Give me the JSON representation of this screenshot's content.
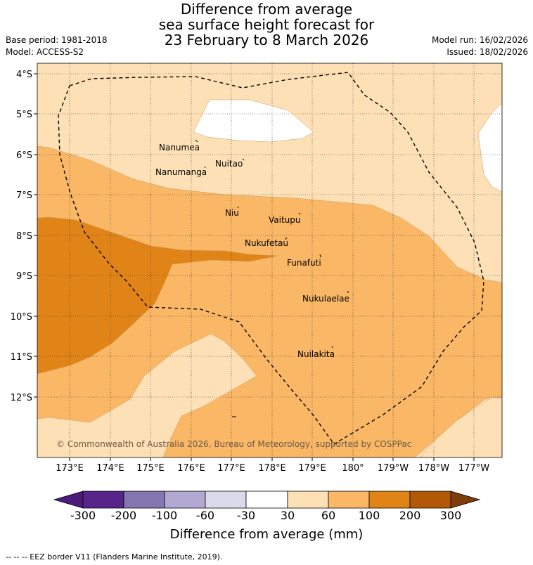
{
  "title": {
    "line1": "Difference from average",
    "line2": "sea surface height forecast for",
    "line3": "23 February to 8 March 2026"
  },
  "meta": {
    "base_period": "Base period: 1981-2018",
    "model": "Model: ACCESS-S2",
    "model_run": "Model run: 16/02/2026",
    "issued": "Issued: 18/02/2026"
  },
  "map": {
    "lat_labels": [
      "4°S",
      "5°S",
      "6°S",
      "7°S",
      "8°S",
      "9°S",
      "10°S",
      "11°S",
      "12°S"
    ],
    "lon_labels": [
      "173°E",
      "174°E",
      "175°E",
      "176°E",
      "177°E",
      "178°E",
      "179°E",
      "180°",
      "179°W",
      "178°W",
      "177°W"
    ],
    "islands": [
      "Nanumea",
      "Nuitao",
      "Nanumanga",
      "Niu",
      "Vaitupu",
      "Nukufetau",
      "Funafuti",
      "Nukulaelae",
      "Nuilakita"
    ],
    "copyright": "© Commonwealth of Australia 2026, Bureau of Meteorology, supported by COSPPac",
    "colors": {
      "c30_60": "#fde0b6",
      "c60_100": "#fab766",
      "c100_200": "#e08418",
      "c0_30": "#ffffff"
    }
  },
  "colorbar": {
    "ticks": [
      "-300",
      "-200",
      "-100",
      "-60",
      "-30",
      "30",
      "60",
      "100",
      "200",
      "300"
    ],
    "colors": [
      "#4b1c7a",
      "#56248a",
      "#8476b0",
      "#b1a9d2",
      "#dadaeb",
      "#ffffff",
      "#fde0b6",
      "#fab766",
      "#e08418",
      "#b35806",
      "#7f3b08"
    ],
    "label": "Difference from average (mm)"
  },
  "footer": "-- -- -- EEZ border V11 (Flanders Marine Institute, 2019)."
}
